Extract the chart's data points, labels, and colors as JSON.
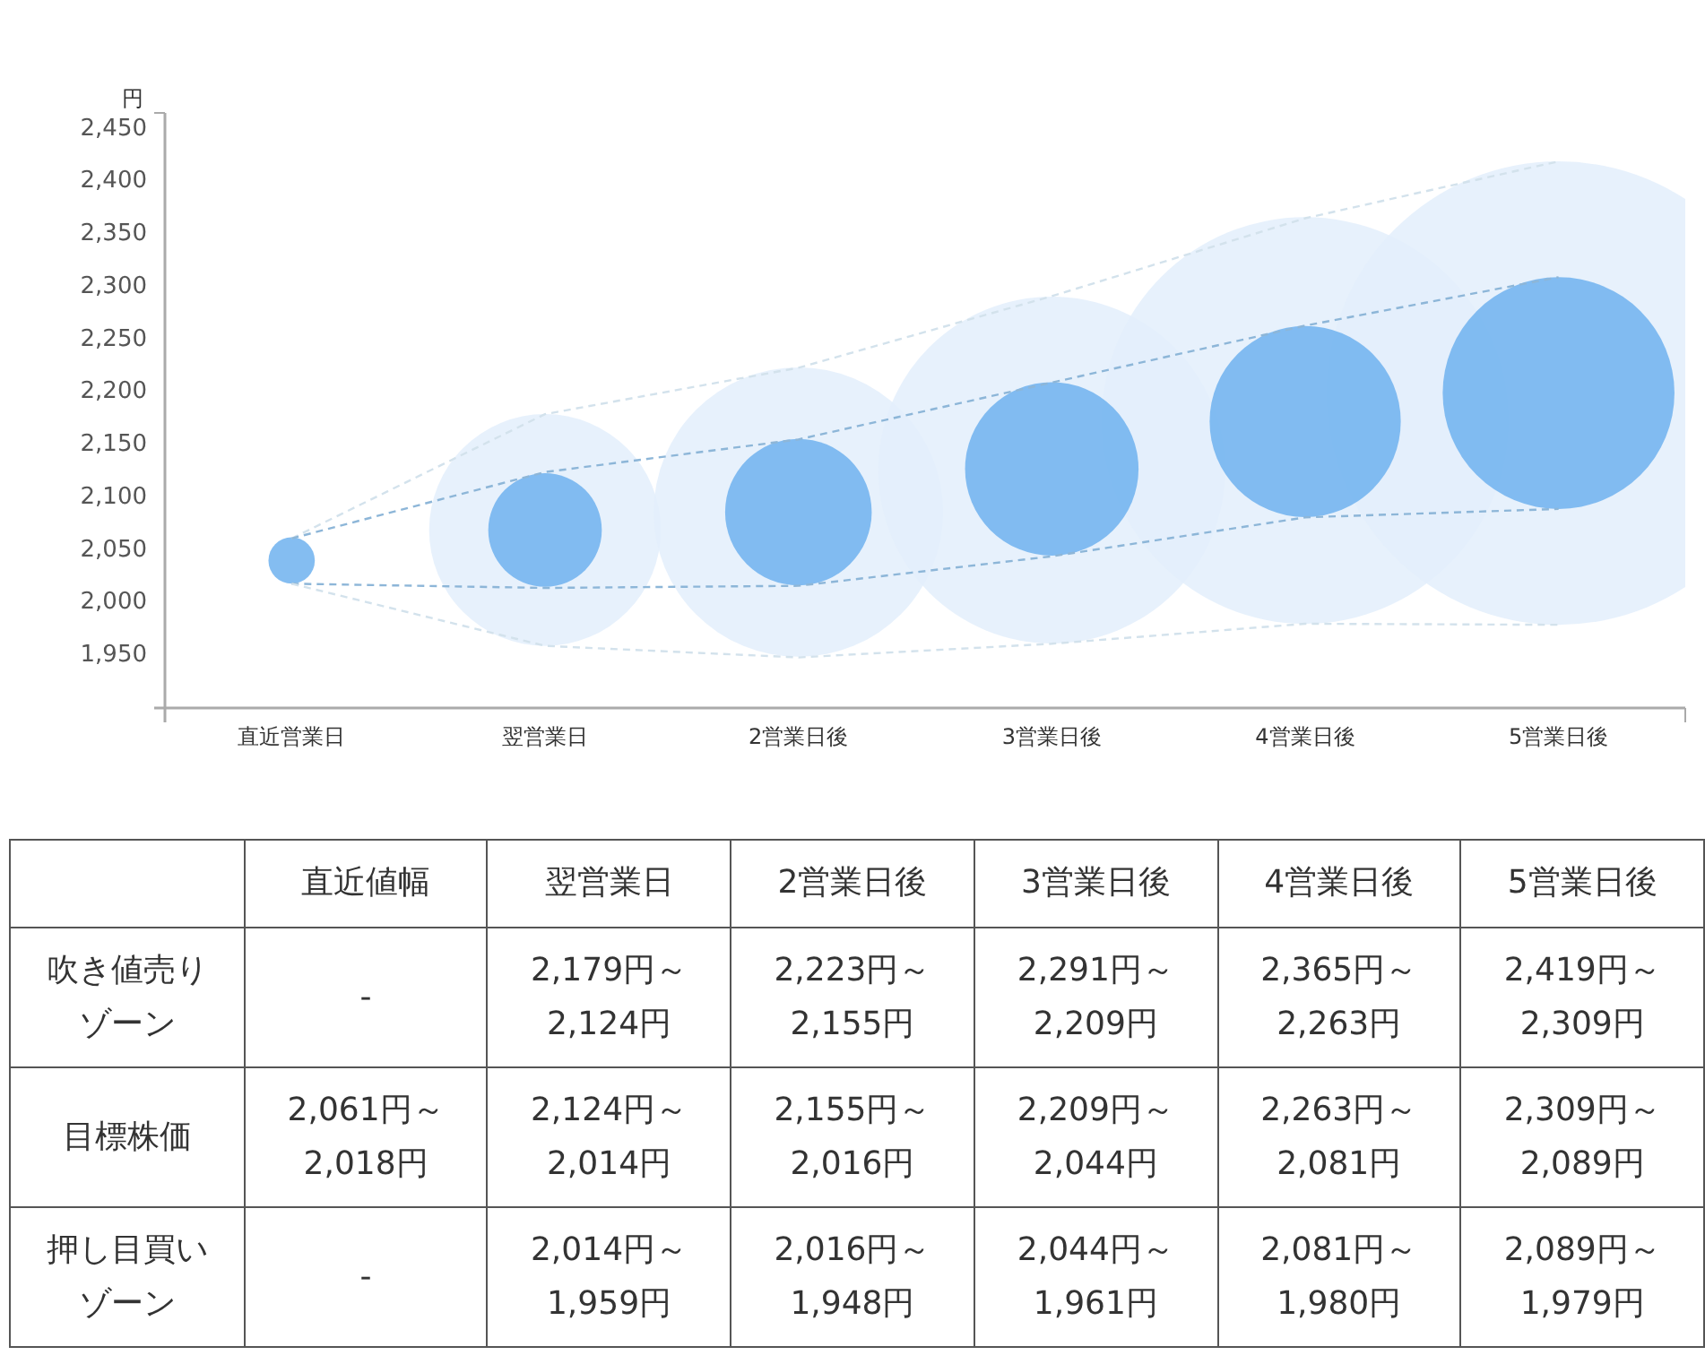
{
  "chart_data": [
    {
      "type": "line",
      "ylabel": "円",
      "categories": [
        "直近営業日",
        "翌営業日",
        "2営業日後",
        "3営業日後",
        "4営業日後",
        "5営業日後"
      ],
      "ylim": [
        1900,
        2465
      ],
      "yticks": [
        {
          "value": 1950,
          "label": "1,950"
        },
        {
          "value": 2000,
          "label": "2,000"
        },
        {
          "value": 2050,
          "label": "2,050"
        },
        {
          "value": 2100,
          "label": "2,100"
        },
        {
          "value": 2150,
          "label": "2,150"
        },
        {
          "value": 2200,
          "label": "2,200"
        },
        {
          "value": 2250,
          "label": "2,250"
        },
        {
          "value": 2300,
          "label": "2,300"
        },
        {
          "value": 2350,
          "label": "2,350"
        },
        {
          "value": 2400,
          "label": "2,400"
        },
        {
          "value": 2450,
          "label": "2,450"
        }
      ],
      "line_style": "dashed",
      "series": [
        {
          "type": "bubble",
          "color": "#e3effc",
          "values": [
            null,
            2069,
            2086,
            2126,
            2173,
            2199
          ],
          "sizes": [
            null,
            0.25,
            0.39,
            0.56,
            0.77,
            1
          ]
        },
        {
          "type": "bubble",
          "color": "#6fb1ee",
          "values": [
            2040,
            2069,
            2086,
            2127,
            2172,
            2199
          ],
          "sizes": [
            0.01,
            0.06,
            0.1,
            0.14,
            0.17,
            0.25
          ]
        },
        {
          "type": "line",
          "color": "#d3e2ec",
          "values": [
            2061,
            2179,
            2223,
            2291,
            2365,
            2419
          ]
        },
        {
          "type": "line",
          "color": "#8db6d8",
          "values": [
            2061,
            2124,
            2155,
            2209,
            2263,
            2309
          ]
        },
        {
          "type": "line",
          "color": "#8db6d8",
          "values": [
            2018,
            2014,
            2016,
            2044,
            2081,
            2089
          ]
        },
        {
          "type": "line",
          "color": "#d3e2ec",
          "values": [
            2018,
            1959,
            1948,
            1961,
            1980,
            1979
          ]
        }
      ]
    },
    {
      "type": "heatmap",
      "cells": [
        [
          null,
          null,
          null,
          null,
          null,
          null
        ],
        [
          null,
          null,
          null,
          null,
          null,
          null
        ],
        [
          null,
          null,
          null,
          null,
          null,
          null
        ]
      ],
      "categories": [
        "直近値幅",
        "翌営業日",
        "2営業日後",
        "3営業日後",
        "4営業日後",
        "5営業日後"
      ],
      "y_categories": [
        "吹き値売りゾーン",
        "目標株価",
        "押し目買いゾーン"
      ],
      "cell_labels": [
        [
          "-",
          "2,179円～\n2,124円",
          "2,223円～\n2,155円",
          "2,291円～\n2,209円",
          "2,365円～\n2,263円",
          "2,419円～\n2,309円"
        ],
        [
          "2,061円～\n2,018円",
          "2,124円～\n2,014円",
          "2,155円～\n2,016円",
          "2,209円～\n2,044円",
          "2,263円～\n2,081円",
          "2,309円～\n2,089円"
        ],
        [
          "-",
          "2,014円～\n1,959円",
          "2,016円～\n1,948円",
          "2,044円～\n1,961円",
          "2,081円～\n1,980円",
          "2,089円～\n1,979円"
        ]
      ]
    }
  ]
}
